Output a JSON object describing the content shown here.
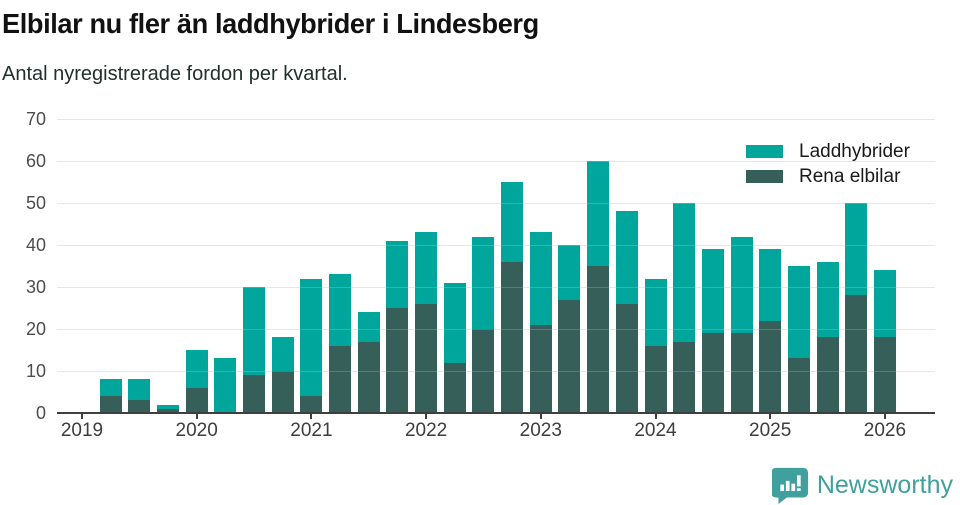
{
  "title": "Elbilar nu fler än laddhybrider i Lindesberg",
  "subtitle": "Antal nyregistrerade fordon per kvartal.",
  "branding": {
    "logo_text": "Newsworthy",
    "logo_color": "#3fa09e",
    "logo_icon": "bar-chart-speech-bubble-icon"
  },
  "colors": {
    "laddhybrider": "#00a59c",
    "rena_elbilar": "#355f58",
    "gridline": "#e2e2e2",
    "axis": "#3f3f3f",
    "y_tick_label": "#4d4d4d",
    "x_tick_label": "#3d3d3d"
  },
  "chart_data": {
    "type": "bar",
    "stacked": true,
    "title": "Elbilar nu fler än laddhybrider i Lindesberg",
    "subtitle": "Antal nyregistrerade fordon per kvartal.",
    "grid": "horizontal",
    "legend_position": "top-right",
    "categories": [
      "2019 Q2",
      "2019 Q3",
      "2019 Q4",
      "2020 Q1",
      "2020 Q2",
      "2020 Q3",
      "2020 Q4",
      "2021 Q1",
      "2021 Q2",
      "2021 Q3",
      "2021 Q4",
      "2022 Q1",
      "2022 Q2",
      "2022 Q3",
      "2022 Q4",
      "2023 Q1",
      "2023 Q2",
      "2023 Q3",
      "2023 Q4",
      "2024 Q1",
      "2024 Q2",
      "2024 Q3",
      "2024 Q4",
      "2025 Q1",
      "2025 Q2",
      "2025 Q3",
      "2025 Q4",
      "2026 Q1"
    ],
    "series": [
      {
        "name": "Laddhybrider",
        "color": "#00a59c",
        "stack_order": "top",
        "values": [
          4,
          5,
          1,
          9,
          13,
          21,
          8,
          28,
          17,
          7,
          16,
          17,
          19,
          22,
          19,
          22,
          13,
          25,
          22,
          16,
          33,
          20,
          23,
          17,
          22,
          18,
          22,
          16
        ]
      },
      {
        "name": "Rena elbilar",
        "color": "#355f58",
        "stack_order": "bottom",
        "values": [
          4,
          3,
          1,
          6,
          0,
          9,
          10,
          4,
          16,
          17,
          25,
          26,
          12,
          20,
          36,
          21,
          27,
          35,
          26,
          16,
          17,
          19,
          19,
          22,
          13,
          18,
          28,
          18
        ]
      }
    ],
    "totals": [
      8,
      8,
      2,
      15,
      13,
      30,
      18,
      32,
      33,
      24,
      41,
      43,
      31,
      42,
      55,
      43,
      40,
      60,
      48,
      32,
      50,
      39,
      42,
      39,
      35,
      36,
      50,
      34
    ],
    "y_axis": {
      "min": 0,
      "max": 70,
      "tick_step": 10,
      "ticks": [
        0,
        10,
        20,
        30,
        40,
        50,
        60,
        70
      ]
    },
    "x_axis": {
      "tick_labels": [
        "2019",
        "2020",
        "2021",
        "2022",
        "2023",
        "2024",
        "2025",
        "2026"
      ]
    }
  }
}
